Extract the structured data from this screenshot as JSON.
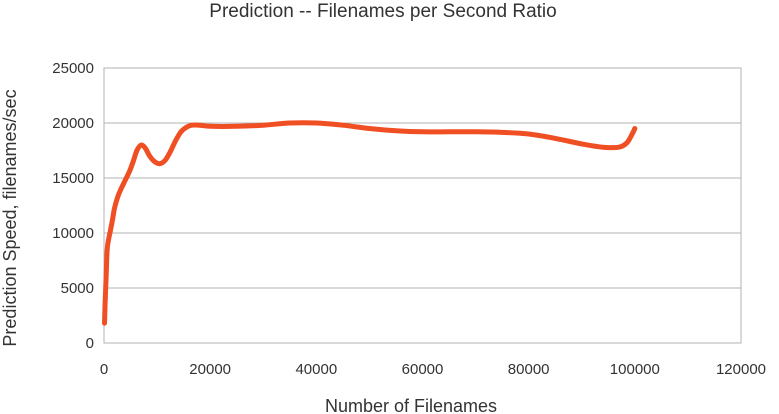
{
  "chart_data": {
    "type": "line",
    "title": "Prediction -- Filenames per Second Ratio",
    "xlabel": "Number of Filenames",
    "ylabel": "Prediction Speed, filenames/sec",
    "xlim": [
      0,
      120000
    ],
    "ylim": [
      0,
      25000
    ],
    "x_ticks": [
      0,
      20000,
      40000,
      60000,
      80000,
      100000,
      120000
    ],
    "y_ticks": [
      0,
      5000,
      10000,
      15000,
      20000,
      25000
    ],
    "grid": "horizontal",
    "legend": "none",
    "series": [
      {
        "color": "#f04e23",
        "points": [
          [
            100,
            1800
          ],
          [
            200,
            3500
          ],
          [
            400,
            6000
          ],
          [
            600,
            8500
          ],
          [
            900,
            9500
          ],
          [
            1200,
            10200
          ],
          [
            1600,
            11200
          ],
          [
            2000,
            12300
          ],
          [
            2600,
            13300
          ],
          [
            3200,
            14000
          ],
          [
            4000,
            14800
          ],
          [
            4800,
            15600
          ],
          [
            5500,
            16500
          ],
          [
            6200,
            17500
          ],
          [
            7000,
            18000
          ],
          [
            7800,
            17700
          ],
          [
            8600,
            17000
          ],
          [
            9500,
            16500
          ],
          [
            10500,
            16300
          ],
          [
            11500,
            16600
          ],
          [
            12500,
            17400
          ],
          [
            13500,
            18400
          ],
          [
            14500,
            19200
          ],
          [
            15500,
            19600
          ],
          [
            16500,
            19800
          ],
          [
            18000,
            19800
          ],
          [
            20000,
            19700
          ],
          [
            25000,
            19700
          ],
          [
            30000,
            19800
          ],
          [
            35000,
            20000
          ],
          [
            40000,
            20000
          ],
          [
            45000,
            19800
          ],
          [
            50000,
            19500
          ],
          [
            55000,
            19300
          ],
          [
            60000,
            19200
          ],
          [
            65000,
            19200
          ],
          [
            70000,
            19200
          ],
          [
            75000,
            19150
          ],
          [
            80000,
            19000
          ],
          [
            85000,
            18600
          ],
          [
            90000,
            18100
          ],
          [
            94000,
            17800
          ],
          [
            97000,
            17800
          ],
          [
            98500,
            18200
          ],
          [
            99500,
            19000
          ],
          [
            100000,
            19500
          ]
        ]
      }
    ]
  }
}
